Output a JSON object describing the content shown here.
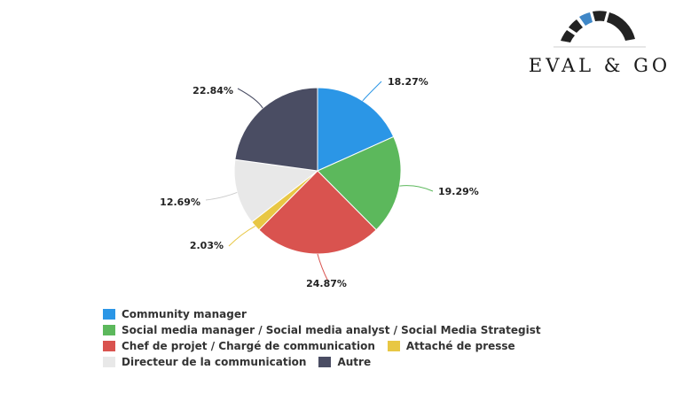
{
  "logo": {
    "text": "EVAL & GO"
  },
  "colors": {
    "community": "#2b96e6",
    "social": "#5cb85c",
    "chef": "#d9534f",
    "attache": "#e8c744",
    "directeur": "#e8e8e8",
    "autre": "#4a4d63"
  },
  "chart_data": {
    "type": "pie",
    "title": "",
    "slices": [
      {
        "name": "Community manager",
        "value": 18.27,
        "label": "18.27%",
        "color": "#2b96e6"
      },
      {
        "name": "Social media manager / Social media analyst / Social Media Strategist",
        "value": 19.29,
        "label": "19.29%",
        "color": "#5cb85c"
      },
      {
        "name": "Chef de projet / Chargé de communication",
        "value": 24.87,
        "label": "24.87%",
        "color": "#d9534f"
      },
      {
        "name": "Attaché de presse",
        "value": 2.03,
        "label": "2.03%",
        "color": "#e8c744"
      },
      {
        "name": "Directeur de la communication",
        "value": 12.69,
        "label": "12.69%",
        "color": "#e8e8e8"
      },
      {
        "name": "Autre",
        "value": 22.84,
        "label": "22.84%",
        "color": "#4a4d63"
      }
    ],
    "legend": "bottom-left"
  }
}
